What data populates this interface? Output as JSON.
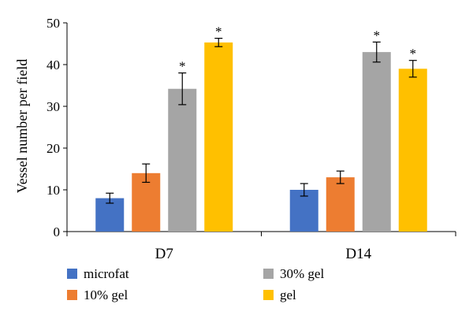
{
  "chart_data": {
    "type": "bar",
    "categories": [
      "D7",
      "D14"
    ],
    "series": [
      {
        "name": "microfat",
        "color": "#4472c4",
        "values": [
          8,
          10
        ],
        "errors": [
          1.2,
          1.5
        ],
        "significant": [
          false,
          false
        ]
      },
      {
        "name": "10% gel",
        "color": "#ed7d31",
        "values": [
          14,
          13
        ],
        "errors": [
          2.2,
          1.5
        ],
        "significant": [
          false,
          false
        ]
      },
      {
        "name": "30% gel",
        "color": "#a5a5a5",
        "values": [
          34.2,
          43
        ],
        "errors": [
          3.8,
          2.4
        ],
        "significant": [
          true,
          true
        ]
      },
      {
        "name": "gel",
        "color": "#ffc000",
        "values": [
          45.3,
          39
        ],
        "errors": [
          1.0,
          2.0
        ],
        "significant": [
          true,
          true
        ]
      }
    ],
    "ylabel": "Vessel number per field",
    "xlabel": "",
    "ylim": [
      0,
      50
    ],
    "yticks": [
      0,
      10,
      20,
      30,
      40,
      50
    ],
    "significance_marker": "*",
    "legend": {
      "placement": "bottom",
      "entries": [
        "microfat",
        "30% gel",
        "10% gel",
        "gel"
      ]
    },
    "grid": false
  }
}
